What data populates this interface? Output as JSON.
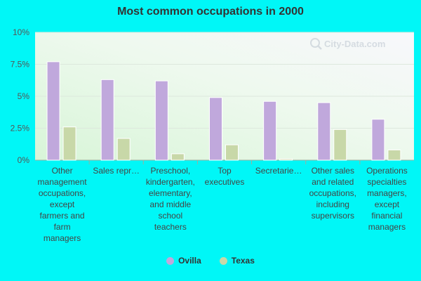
{
  "chart_data": {
    "type": "bar",
    "title": "Most common occupations in 2000",
    "xlabel": "",
    "ylabel": "",
    "ylim": [
      0,
      10
    ],
    "y_ticks": [
      "0%",
      "2.5%",
      "5%",
      "7.5%",
      "10%"
    ],
    "y_tick_values": [
      0,
      2.5,
      5,
      7.5,
      10
    ],
    "categories": [
      "Other management occupations, except farmers and farm managers",
      "Sales repr…",
      "Preschool, kindergarten, elementary, and middle school teachers",
      "Top executives",
      "Secretarie…",
      "Other sales and related occupations, including supervisors",
      "Operations specialties managers, except financial managers"
    ],
    "category_label_lines": [
      [
        "Other",
        "management",
        "occupations,",
        "except",
        "farmers and",
        "farm",
        "managers"
      ],
      [
        "Sales repr…"
      ],
      [
        "Preschool,",
        "kindergarten,",
        "elementary,",
        "and middle",
        "school",
        "teachers"
      ],
      [
        "Top",
        "executives"
      ],
      [
        "Secretarie…"
      ],
      [
        "Other sales",
        "and related",
        "occupations,",
        "including",
        "supervisors"
      ],
      [
        "Operations",
        "specialties",
        "managers,",
        "except",
        "financial",
        "managers"
      ]
    ],
    "series": [
      {
        "name": "Ovilla",
        "color": "#c0a8dc",
        "values": [
          7.7,
          6.3,
          6.2,
          4.9,
          4.6,
          4.5,
          3.2
        ]
      },
      {
        "name": "Texas",
        "color": "#c8d8a8",
        "values": [
          2.6,
          1.7,
          0.5,
          1.2,
          0.1,
          2.4,
          0.8
        ]
      }
    ],
    "grid": true,
    "legend_position": "bottom"
  }
}
